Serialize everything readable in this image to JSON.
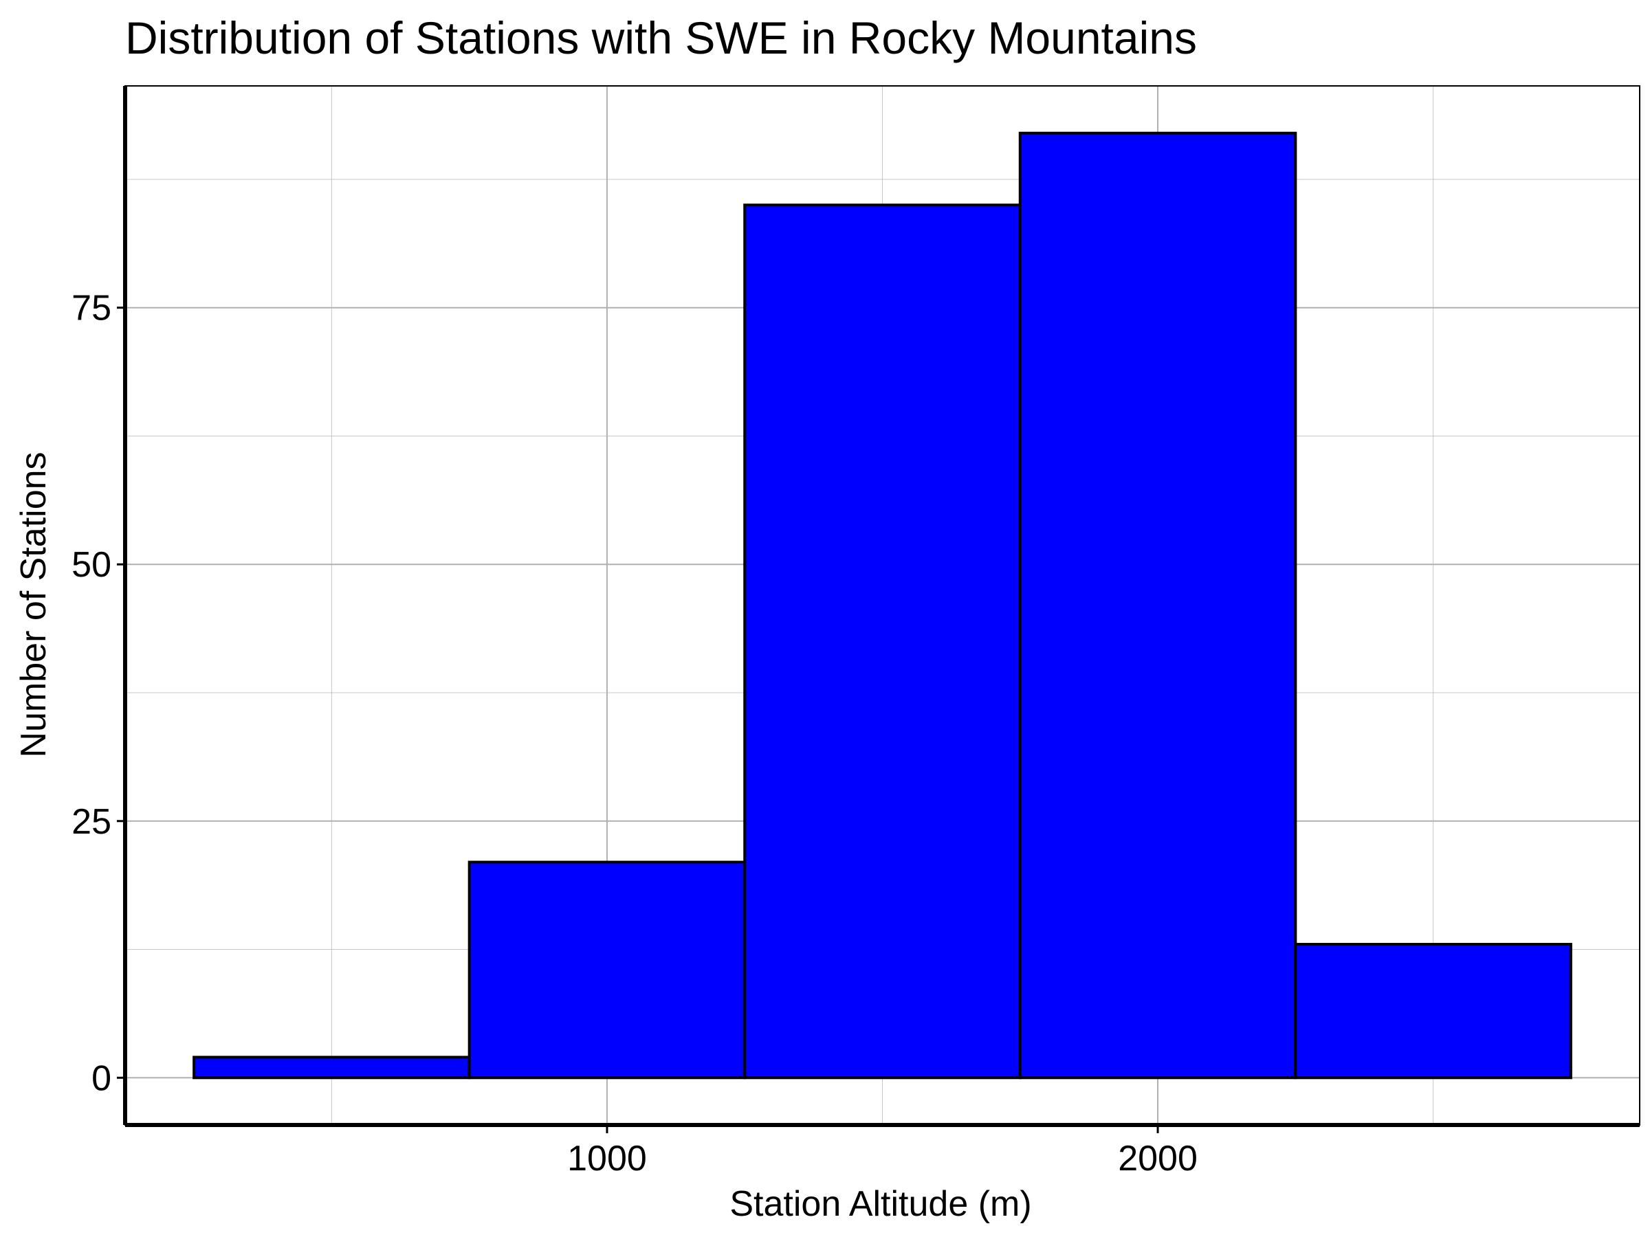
{
  "chart_data": {
    "type": "bar",
    "title": "Distribution of Stations with SWE in Rocky Mountains",
    "xlabel": "Station Altitude (m)",
    "ylabel": "Number of Stations",
    "bins": [
      {
        "x0": 250,
        "x1": 750,
        "count": 2
      },
      {
        "x0": 750,
        "x1": 1250,
        "count": 21
      },
      {
        "x0": 1250,
        "x1": 1750,
        "count": 85
      },
      {
        "x0": 1750,
        "x1": 2250,
        "count": 92
      },
      {
        "x0": 2250,
        "x1": 2750,
        "count": 13
      }
    ],
    "xlim": [
      125,
      2875
    ],
    "ylim": [
      -4.6,
      96.6
    ],
    "x_ticks": [
      1000,
      2000
    ],
    "x_tick_labels": [
      "1000",
      "2000"
    ],
    "x_minor_gridlines": [
      500,
      1500,
      2500
    ],
    "y_ticks": [
      0,
      25,
      50,
      75
    ],
    "y_tick_labels": [
      "0",
      "25",
      "50",
      "75"
    ],
    "y_minor_gridlines": [
      12.5,
      37.5,
      62.5,
      87.5
    ],
    "grid": true,
    "colors": {
      "bar_fill": "#0000ff",
      "bar_stroke": "#000000",
      "grid": "#b0b0b0",
      "axis": "#000000"
    }
  }
}
